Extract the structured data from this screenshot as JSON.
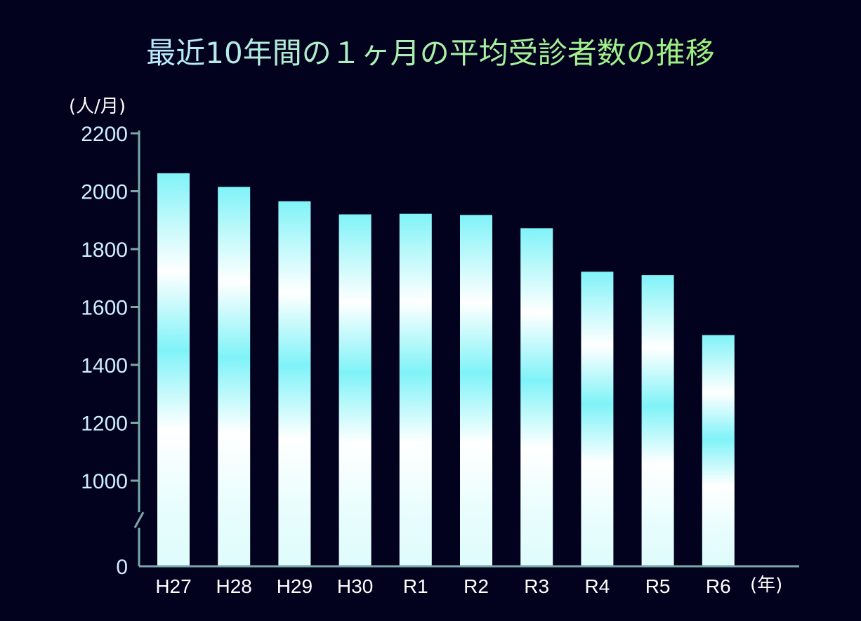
{
  "chart_data": {
    "type": "bar",
    "title": "最近10年間の１ヶ月の平均受診者数の推移",
    "ylabel": "(人/月)",
    "xlabel": "(年)",
    "categories": [
      "H27",
      "H28",
      "H29",
      "H30",
      "R1",
      "R2",
      "R3",
      "R4",
      "R5",
      "R6"
    ],
    "values": [
      2062,
      2015,
      1965,
      1920,
      1922,
      1918,
      1872,
      1722,
      1710,
      1503
    ],
    "ylim": [
      0,
      2200
    ],
    "axis_break": [
      0,
      1000
    ],
    "yticks": [
      "0",
      "1000",
      "1200",
      "1400",
      "1600",
      "1800",
      "2000",
      "2200"
    ],
    "grid": false,
    "legend": "none"
  },
  "colors": {
    "background": "#02021f",
    "bar_edge": "#7ff3f8",
    "bar_center": "#ffffff",
    "axis": "#7aa8a8",
    "title_start": "#b9eaff",
    "title_end": "#9df07c"
  }
}
